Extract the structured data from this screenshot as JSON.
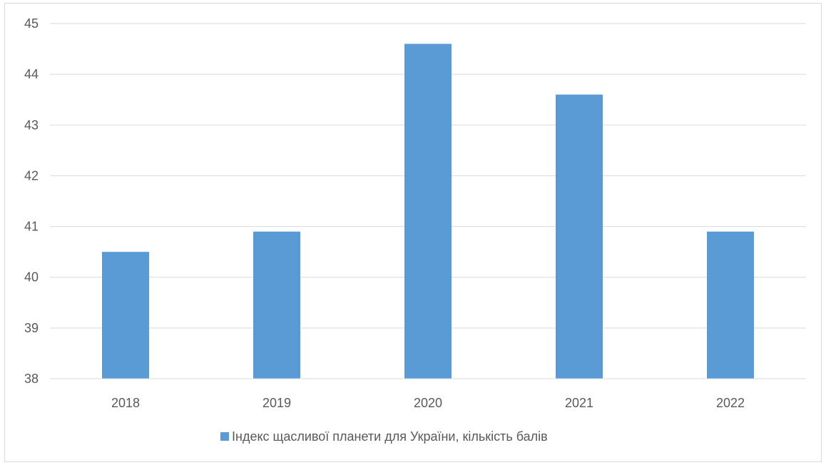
{
  "chart_data": {
    "type": "bar",
    "categories": [
      "2018",
      "2019",
      "2020",
      "2021",
      "2022"
    ],
    "series": [
      {
        "name": "Індекс щасливої планети для України, кількість балів",
        "values": [
          40.5,
          40.9,
          44.6,
          43.6,
          40.9
        ],
        "color": "#5b9bd5"
      }
    ],
    "ylim": [
      38,
      45
    ],
    "yticks": [
      "38",
      "39",
      "40",
      "41",
      "42",
      "43",
      "44",
      "45"
    ],
    "grid": true,
    "legend": "bottom",
    "title": "",
    "xlabel": "",
    "ylabel": ""
  }
}
